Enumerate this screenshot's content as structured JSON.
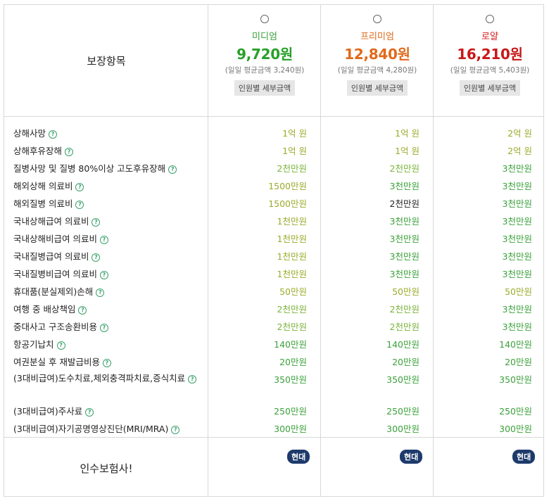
{
  "header": {
    "label": "보장항목"
  },
  "plans": [
    {
      "name": "미디엄",
      "price": "9,720원",
      "daily": "(일일 평균금액 3,240원)",
      "detail": "인원별 세부금액",
      "color": "#3aa13a",
      "price_color": "#28a028"
    },
    {
      "name": "프리미엄",
      "price": "12,840원",
      "daily": "(일일 평균금액 4,280원)",
      "detail": "인원별 세부금액",
      "color": "#e06a1c",
      "price_color": "#e06a1c"
    },
    {
      "name": "로얄",
      "price": "16,210원",
      "daily": "(일일 평균금액 5,403원)",
      "detail": "인원별 세부금액",
      "color": "#d42020",
      "price_color": "#c81818"
    }
  ],
  "rows": [
    {
      "label": "상해사망",
      "values": [
        "1억 원",
        "1억 원",
        "2억 원"
      ],
      "colors": [
        "#9bab2a",
        "#9bab2a",
        "#9bab2a"
      ]
    },
    {
      "label": "상해후유장해",
      "values": [
        "1억 원",
        "1억 원",
        "2억 원"
      ],
      "colors": [
        "#9bab2a",
        "#9bab2a",
        "#9bab2a"
      ]
    },
    {
      "label": "질병사망 및 질병 80%이상 고도후유장해",
      "values": [
        "2천만원",
        "2천만원",
        "3천만원"
      ],
      "colors": [
        "#7ab33a",
        "#7ab33a",
        "#3aa13a"
      ]
    },
    {
      "label": "해외상해 의료비",
      "values": [
        "1500만원",
        "3천만원",
        "3천만원"
      ],
      "colors": [
        "#9bab2a",
        "#3aa13a",
        "#3aa13a"
      ]
    },
    {
      "label": "해외질병 의료비",
      "values": [
        "1500만원",
        "2천만원",
        "3천만원"
      ],
      "colors": [
        "#9bab2a",
        "#222222",
        "#3aa13a"
      ]
    },
    {
      "label": "국내상해급여 의료비",
      "values": [
        "1천만원",
        "3천만원",
        "3천만원"
      ],
      "colors": [
        "#9bab2a",
        "#3aa13a",
        "#3aa13a"
      ]
    },
    {
      "label": "국내상해비급여 의료비",
      "values": [
        "1천만원",
        "3천만원",
        "3천만원"
      ],
      "colors": [
        "#9bab2a",
        "#3aa13a",
        "#3aa13a"
      ]
    },
    {
      "label": "국내질병급여 의료비",
      "values": [
        "1천만원",
        "3천만원",
        "3천만원"
      ],
      "colors": [
        "#9bab2a",
        "#3aa13a",
        "#3aa13a"
      ]
    },
    {
      "label": "국내질병비급여 의료비",
      "values": [
        "1천만원",
        "3천만원",
        "3천만원"
      ],
      "colors": [
        "#9bab2a",
        "#3aa13a",
        "#3aa13a"
      ]
    },
    {
      "label": "휴대품(분실제외)손해",
      "values": [
        "50만원",
        "50만원",
        "50만원"
      ],
      "colors": [
        "#9bab2a",
        "#9bab2a",
        "#9bab2a"
      ]
    },
    {
      "label": "여행 중 배상책임",
      "values": [
        "2천만원",
        "2천만원",
        "3천만원"
      ],
      "colors": [
        "#7ab33a",
        "#7ab33a",
        "#3aa13a"
      ]
    },
    {
      "label": "중대사고 구조송환비용",
      "values": [
        "2천만원",
        "2천만원",
        "3천만원"
      ],
      "colors": [
        "#7ab33a",
        "#7ab33a",
        "#3aa13a"
      ]
    },
    {
      "label": "항공기납치",
      "values": [
        "140만원",
        "140만원",
        "140만원"
      ],
      "colors": [
        "#3aa13a",
        "#3aa13a",
        "#3aa13a"
      ]
    },
    {
      "label": "여권분실 후 재발급비용",
      "values": [
        "20만원",
        "20만원",
        "20만원"
      ],
      "colors": [
        "#3aa13a",
        "#3aa13a",
        "#3aa13a"
      ]
    },
    {
      "label": "(3대비급여)도수치료,체외충격파치료,증식치료",
      "values": [
        "350만원",
        "350만원",
        "350만원"
      ],
      "colors": [
        "#3aa13a",
        "#3aa13a",
        "#3aa13a"
      ],
      "wrap": true
    },
    {
      "label": "(3대비급여)주사료",
      "values": [
        "250만원",
        "250만원",
        "250만원"
      ],
      "colors": [
        "#3aa13a",
        "#3aa13a",
        "#3aa13a"
      ]
    },
    {
      "label": "(3대비급여)자기공명영상진단(MRI/MRA)",
      "values": [
        "300만원",
        "300만원",
        "300만원"
      ],
      "colors": [
        "#3aa13a",
        "#3aa13a",
        "#3aa13a"
      ]
    }
  ],
  "insurer": {
    "label": "인수보험사!",
    "badges": [
      "현대",
      "현대",
      "현대"
    ]
  },
  "help_icon": "?"
}
